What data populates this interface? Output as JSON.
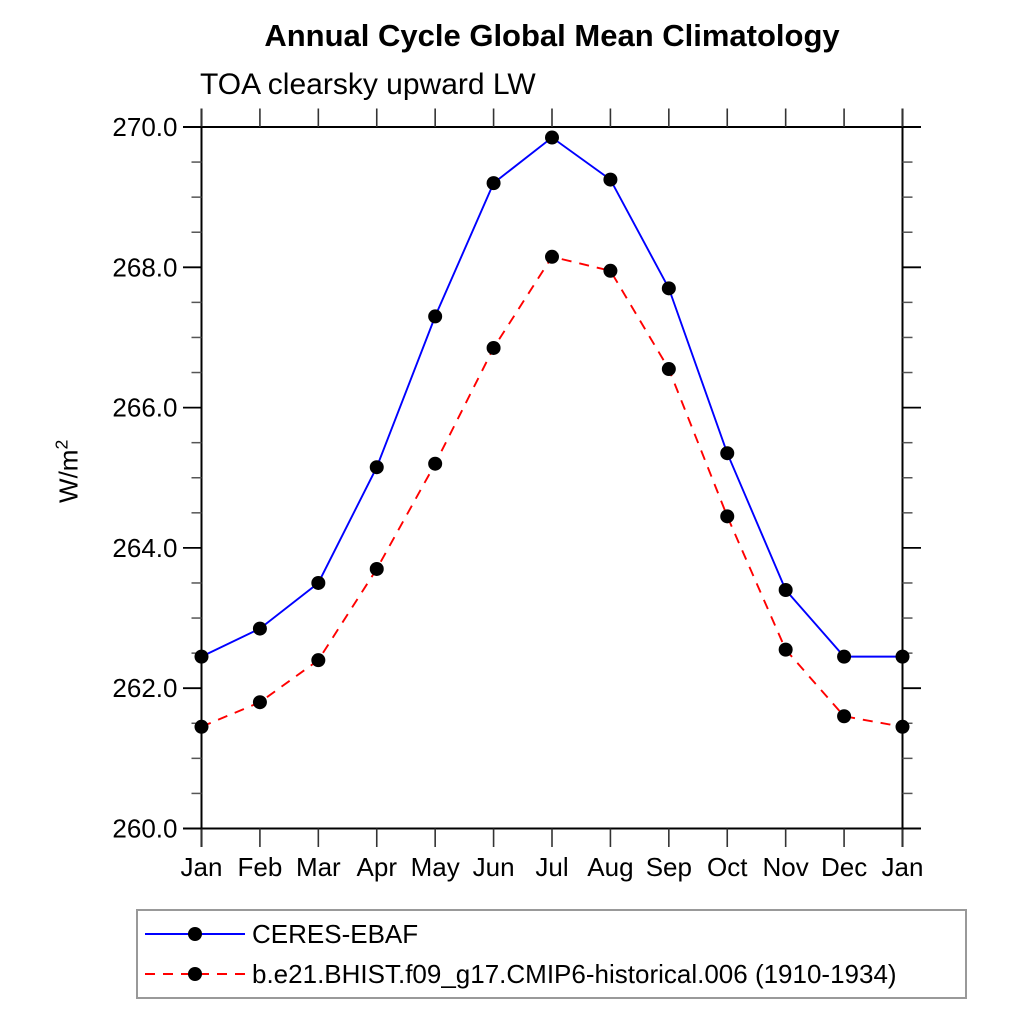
{
  "title": "Annual Cycle Global Mean Climatology",
  "subtitle": "TOA clearsky upward LW",
  "y_unit_base": "W/m",
  "y_unit_exp": "2",
  "chart_data": {
    "type": "line",
    "categories": [
      "Jan",
      "Feb",
      "Mar",
      "Apr",
      "May",
      "Jun",
      "Jul",
      "Aug",
      "Sep",
      "Oct",
      "Nov",
      "Dec",
      "Jan"
    ],
    "series": [
      {
        "name": "CERES-EBAF",
        "color": "#0000ff",
        "line_style": "solid",
        "marker": "circle",
        "marker_color": "#000000",
        "values": [
          262.45,
          262.85,
          263.5,
          265.15,
          267.3,
          269.2,
          269.85,
          269.25,
          267.7,
          265.35,
          263.4,
          262.45,
          262.45
        ]
      },
      {
        "name": "b.e21.BHIST.f09_g17.CMIP6-historical.006 (1910-1934)",
        "color": "#ff0000",
        "line_style": "dashed",
        "marker": "circle",
        "marker_color": "#000000",
        "values": [
          261.45,
          261.8,
          262.4,
          263.7,
          265.2,
          266.85,
          268.15,
          267.95,
          266.55,
          264.45,
          262.55,
          261.6,
          261.45
        ]
      }
    ],
    "ylabel": "W/m2",
    "ylim": [
      260.0,
      270.0
    ],
    "ytick_major_step": 2.0,
    "ytick_minor_step": 0.5,
    "ytick_labels": [
      "260.0",
      "262.0",
      "264.0",
      "266.0",
      "268.0",
      "270.0"
    ],
    "grid": "off",
    "legend_position": "bottom-left"
  }
}
